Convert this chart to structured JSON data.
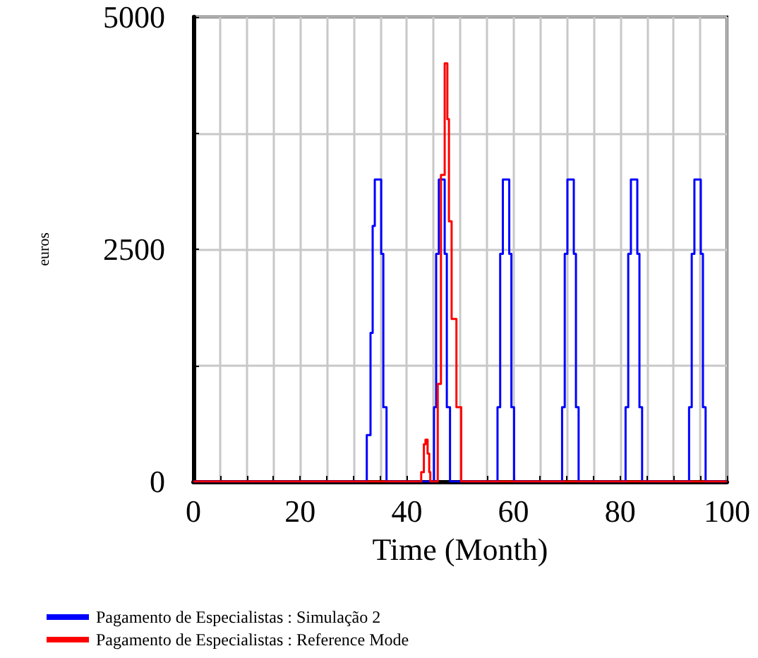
{
  "chart_data": {
    "type": "step",
    "xlabel": "Time (Month)",
    "ylabel": "euros",
    "xlim": [
      0,
      100
    ],
    "ylim": [
      0,
      5000
    ],
    "xticks": [
      0,
      {
        "value": 5,
        "label": null
      },
      {
        "value": 10,
        "label": null
      },
      {
        "value": 15,
        "label": null
      },
      20,
      {
        "value": 25,
        "label": null
      },
      {
        "value": 30,
        "label": null
      },
      {
        "value": 35,
        "label": null
      },
      40,
      {
        "value": 45,
        "label": null
      },
      {
        "value": 50,
        "label": null
      },
      {
        "value": 55,
        "label": null
      },
      60,
      {
        "value": 65,
        "label": null
      },
      {
        "value": 70,
        "label": null
      },
      {
        "value": 75,
        "label": null
      },
      80,
      {
        "value": 85,
        "label": null
      },
      {
        "value": 90,
        "label": null
      },
      {
        "value": 95,
        "label": null
      },
      100
    ],
    "yticks": [
      0,
      {
        "value": 1250,
        "label": null
      },
      2500,
      {
        "value": 3750,
        "label": null
      },
      5000
    ],
    "grid": true,
    "legend": "bottom",
    "marker": "none",
    "line_style": "solid",
    "series": [
      {
        "name": "Pagamento de Especialistas : Simulação 2",
        "color": "#0000ff",
        "x": [
          0,
          32.5,
          33.2,
          33.6,
          34.0,
          35.2,
          35.6,
          36.2,
          45.1,
          45.5,
          46.0,
          47.1,
          47.5,
          48.1,
          57.0,
          57.5,
          58.0,
          59.2,
          59.6,
          60.1,
          69.1,
          69.6,
          70.1,
          71.3,
          71.7,
          72.2,
          81.0,
          81.5,
          82.0,
          83.2,
          83.6,
          84.1,
          92.9,
          93.4,
          93.9,
          95.1,
          95.5,
          96.0,
          100
        ],
        "values": [
          0,
          500,
          1600,
          2750,
          3250,
          2450,
          800,
          0,
          800,
          2450,
          3250,
          2450,
          800,
          0,
          800,
          2450,
          3250,
          2450,
          800,
          0,
          800,
          2450,
          3250,
          2450,
          800,
          0,
          800,
          2450,
          3250,
          2450,
          800,
          0,
          800,
          2450,
          3250,
          2450,
          800,
          0,
          0
        ]
      },
      {
        "name": "Pagamento de Especialistas : Reference Mode",
        "color": "#ff0000",
        "x": [
          0,
          42.7,
          43.2,
          43.5,
          43.9,
          44.2,
          44.4,
          45.8,
          46.4,
          47.1,
          47.6,
          47.9,
          48.4,
          49.3,
          50.2,
          100
        ],
        "values": [
          0,
          100,
          400,
          450,
          300,
          100,
          0,
          1050,
          3300,
          4500,
          3900,
          2800,
          1750,
          800,
          0,
          0
        ]
      }
    ]
  }
}
